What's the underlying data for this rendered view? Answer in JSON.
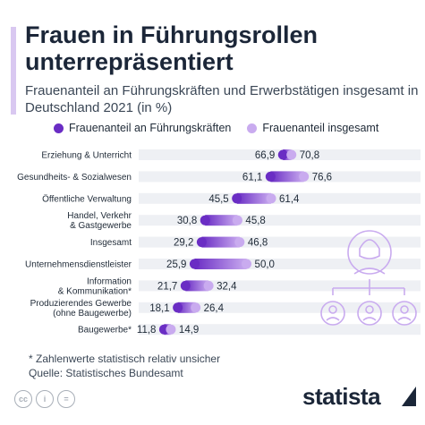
{
  "header": {
    "title": "Frauen in Führungsrollen unterrepräsentiert",
    "subtitle": "Frauenanteil an Führungskräften und Erwerbstätigen insgesamt in Deutschland 2021 (in %)"
  },
  "legend": {
    "series_a": "Frauenanteil an Führungskräften",
    "series_b": "Frauenanteil insgesamt"
  },
  "colors": {
    "dark_purple": "#6a2dc4",
    "light_purple": "#c9abef",
    "track": "#eef0f4",
    "accent": "#d9c8f1"
  },
  "chart_data": {
    "type": "dumbbell",
    "series": [
      {
        "name": "Frauenanteil an Führungskräften",
        "color": "#6a2dc4"
      },
      {
        "name": "Frauenanteil insgesamt",
        "color": "#c9abef"
      }
    ],
    "categories": [
      {
        "label": [
          "Erziehung & Unterricht"
        ],
        "fuehrung": 66.9,
        "insgesamt": 70.8,
        "fuehrung_text": "66,9",
        "insgesamt_text": "70,8"
      },
      {
        "label": [
          "Gesundheits- & Sozialwesen"
        ],
        "fuehrung": 61.1,
        "insgesamt": 76.6,
        "fuehrung_text": "61,1",
        "insgesamt_text": "76,6"
      },
      {
        "label": [
          "Öffentliche Verwaltung"
        ],
        "fuehrung": 45.5,
        "insgesamt": 61.4,
        "fuehrung_text": "45,5",
        "insgesamt_text": "61,4"
      },
      {
        "label": [
          "Handel, Verkehr",
          "& Gastgewerbe"
        ],
        "fuehrung": 30.8,
        "insgesamt": 45.8,
        "fuehrung_text": "30,8",
        "insgesamt_text": "45,8"
      },
      {
        "label": [
          "Insgesamt"
        ],
        "fuehrung": 29.2,
        "insgesamt": 46.8,
        "fuehrung_text": "29,2",
        "insgesamt_text": "46,8"
      },
      {
        "label": [
          "Unternehmensdienstleister"
        ],
        "fuehrung": 25.9,
        "insgesamt": 50.0,
        "fuehrung_text": "25,9",
        "insgesamt_text": "50,0"
      },
      {
        "label": [
          "Information",
          "& Kommunikation*"
        ],
        "fuehrung": 21.7,
        "insgesamt": 32.4,
        "fuehrung_text": "21,7",
        "insgesamt_text": "32,4"
      },
      {
        "label": [
          "Produzierendes Gewerbe",
          "(ohne Baugewerbe)"
        ],
        "fuehrung": 18.1,
        "insgesamt": 26.4,
        "fuehrung_text": "18,1",
        "insgesamt_text": "26,4"
      },
      {
        "label": [
          "Baugewerbe*"
        ],
        "fuehrung": 11.8,
        "insgesamt": 14.9,
        "fuehrung_text": "11,8",
        "insgesamt_text": "14,9"
      }
    ],
    "xlim": [
      0,
      100
    ],
    "grid": false
  },
  "footer": {
    "note": "* Zahlenwerte statistisch relativ unsicher",
    "source": "Quelle: Statistisches Bundesamt",
    "brand": "statista"
  }
}
